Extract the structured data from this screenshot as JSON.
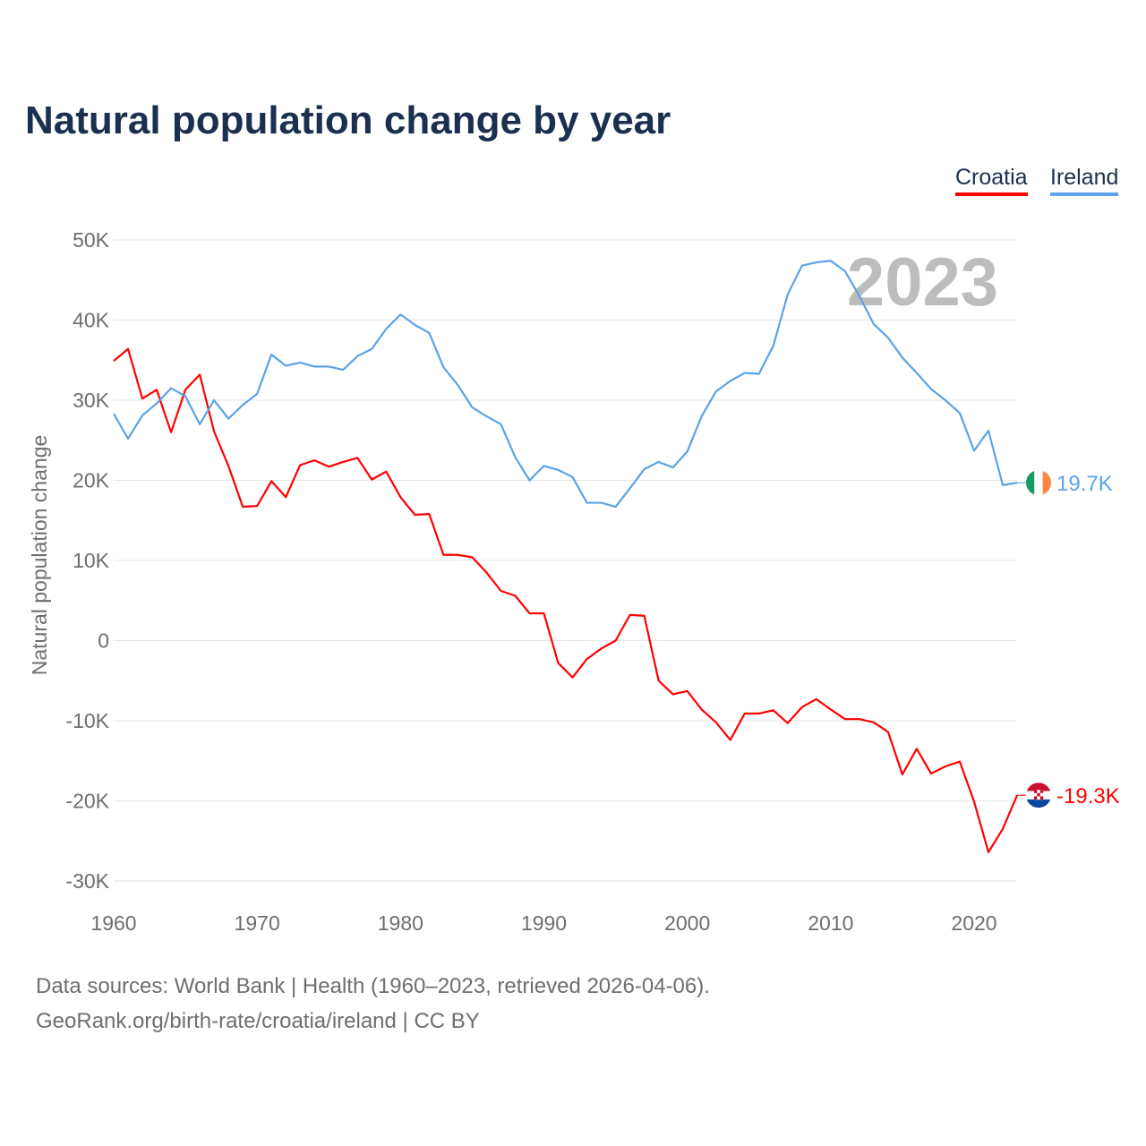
{
  "chart_data": {
    "type": "line",
    "title": "Natural population change by year",
    "xlabel": "",
    "ylabel": "Natural population change",
    "xlim": [
      1960,
      2023
    ],
    "ylim": [
      -30000,
      50000
    ],
    "grid": true,
    "legend_position": "top-right",
    "year_watermark": "2023",
    "x_ticks": [
      "1960",
      "1970",
      "1980",
      "1990",
      "2000",
      "2010",
      "2020"
    ],
    "y_ticks": [
      {
        "value": 50000,
        "label": "50K"
      },
      {
        "value": 40000,
        "label": "40K"
      },
      {
        "value": 30000,
        "label": "30K"
      },
      {
        "value": 20000,
        "label": "20K"
      },
      {
        "value": 10000,
        "label": "10K"
      },
      {
        "value": 0,
        "label": "0"
      },
      {
        "value": -10000,
        "label": "-10K"
      },
      {
        "value": -20000,
        "label": "-20K"
      },
      {
        "value": -30000,
        "label": "-30K"
      }
    ],
    "x_start": 1960,
    "series": [
      {
        "name": "Croatia",
        "color": "#ff0000",
        "end_label": "-19.3K",
        "flag": "croatia-flag",
        "values": [
          34900,
          36400,
          30200,
          31300,
          26000,
          31300,
          33200,
          26100,
          21800,
          16700,
          16800,
          19900,
          17900,
          21900,
          22500,
          21700,
          22300,
          22800,
          20100,
          21100,
          17900,
          15700,
          15800,
          10700,
          10700,
          10400,
          8500,
          6200,
          5600,
          3400,
          3400,
          -2800,
          -4600,
          -2300,
          -1000,
          0,
          3200,
          3100,
          -5000,
          -6700,
          -6300,
          -8600,
          -10200,
          -12400,
          -9100,
          -9100,
          -8700,
          -10300,
          -8300,
          -7300,
          -8600,
          -9800,
          -9800,
          -10200,
          -11400,
          -16700,
          -13500,
          -16600,
          -15700,
          -15100,
          -20100,
          -26400,
          -23500,
          -19300
        ]
      },
      {
        "name": "Ireland",
        "color": "#5ba3e6",
        "end_label": "19.7K",
        "flag": "ireland-flag",
        "values": [
          28300,
          25200,
          28100,
          29600,
          31500,
          30500,
          27000,
          30000,
          27700,
          29400,
          30800,
          35700,
          34300,
          34700,
          34200,
          34200,
          33800,
          35500,
          36400,
          38900,
          40700,
          39400,
          38400,
          34100,
          31900,
          29100,
          28000,
          27000,
          22900,
          20000,
          21800,
          21300,
          20400,
          17200,
          17200,
          16700,
          19000,
          21400,
          22300,
          21600,
          23600,
          28000,
          31100,
          32400,
          33400,
          33300,
          36800,
          43200,
          46800,
          47200,
          47400,
          46100,
          43000,
          39500,
          37800,
          35300,
          33400,
          31400,
          30000,
          28400,
          23700,
          26200,
          19400,
          19700
        ]
      }
    ]
  },
  "footer": {
    "line1": "Data sources: World Bank | Health (1960–2023, retrieved 2026-04-06).",
    "line2": "GeoRank.org/birth-rate/croatia/ireland | CC BY"
  }
}
